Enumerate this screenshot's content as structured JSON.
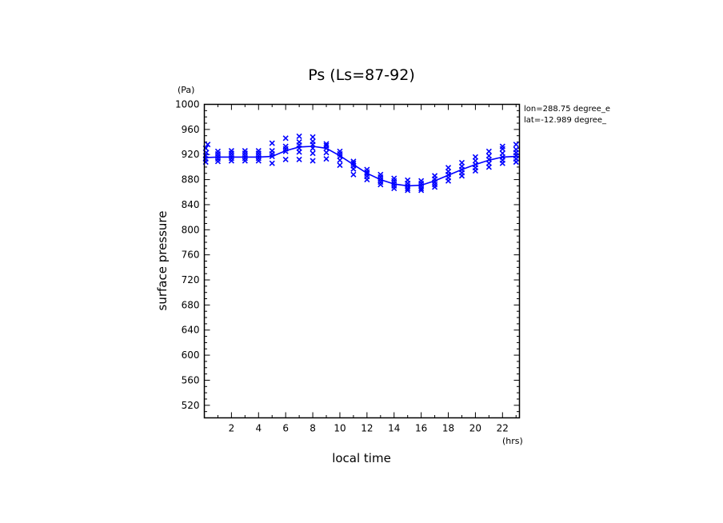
{
  "chart_data": {
    "type": "scatter",
    "title": "Ps (Ls=87-92)",
    "xlabel": "local time",
    "ylabel": "surface pressure",
    "xunit": "(hrs)",
    "yunit": "(Pa)",
    "annotations": [
      "lon=288.75 degree_e",
      "lat=-12.989 degree_"
    ],
    "xlim": [
      0,
      23.25
    ],
    "ylim": [
      500,
      1000
    ],
    "xticks": [
      2,
      4,
      6,
      8,
      10,
      12,
      14,
      16,
      18,
      20,
      22
    ],
    "yticks": [
      520,
      560,
      600,
      640,
      680,
      720,
      760,
      800,
      840,
      880,
      920,
      960,
      1000
    ],
    "grid": false,
    "series": [
      {
        "style": "line",
        "color": "#0000ff",
        "x": [
          0,
          1,
          2,
          3,
          4,
          5,
          6,
          7,
          8,
          9,
          10,
          11,
          12,
          13,
          14,
          15,
          16,
          17,
          18,
          19,
          20,
          21,
          22,
          23,
          23.25
        ],
        "y": [
          915,
          916,
          916,
          916,
          916,
          917,
          926,
          932,
          933,
          930,
          918,
          904,
          890,
          880,
          873,
          870,
          871,
          878,
          887,
          896,
          904,
          911,
          916,
          917,
          917
        ]
      },
      {
        "style": "markers",
        "marker": "x",
        "color": "#0000ff",
        "points": [
          [
            0.1,
            908
          ],
          [
            0.1,
            913
          ],
          [
            0.1,
            918
          ],
          [
            0.15,
            923
          ],
          [
            0.1,
            930
          ],
          [
            0.25,
            936
          ],
          [
            1,
            909
          ],
          [
            1,
            913
          ],
          [
            1,
            917
          ],
          [
            1,
            921
          ],
          [
            1,
            925
          ],
          [
            2,
            910
          ],
          [
            2,
            914
          ],
          [
            2,
            918
          ],
          [
            2,
            922
          ],
          [
            2,
            926
          ],
          [
            3,
            910
          ],
          [
            3,
            914
          ],
          [
            3,
            918
          ],
          [
            3,
            922
          ],
          [
            3,
            926
          ],
          [
            4,
            910
          ],
          [
            4,
            914
          ],
          [
            4,
            918
          ],
          [
            4,
            922
          ],
          [
            4,
            926
          ],
          [
            5,
            906
          ],
          [
            5,
            917
          ],
          [
            5,
            921
          ],
          [
            5,
            926
          ],
          [
            5,
            938
          ],
          [
            6,
            912
          ],
          [
            6,
            925
          ],
          [
            6,
            929
          ],
          [
            6,
            933
          ],
          [
            6,
            946
          ],
          [
            7,
            912
          ],
          [
            7,
            924
          ],
          [
            7,
            930
          ],
          [
            7,
            935
          ],
          [
            7,
            940
          ],
          [
            7,
            949
          ],
          [
            8,
            910
          ],
          [
            8,
            922
          ],
          [
            8,
            930
          ],
          [
            8,
            936
          ],
          [
            8,
            941
          ],
          [
            8,
            948
          ],
          [
            9,
            913
          ],
          [
            9,
            923
          ],
          [
            9,
            930
          ],
          [
            9,
            934
          ],
          [
            9,
            937
          ],
          [
            10,
            903
          ],
          [
            10,
            911
          ],
          [
            10,
            917
          ],
          [
            10,
            921
          ],
          [
            10,
            925
          ],
          [
            11,
            888
          ],
          [
            11,
            897
          ],
          [
            11,
            902
          ],
          [
            11,
            906
          ],
          [
            11,
            909
          ],
          [
            12,
            880
          ],
          [
            12,
            885
          ],
          [
            12,
            889
          ],
          [
            12,
            892
          ],
          [
            12,
            896
          ],
          [
            13,
            872
          ],
          [
            13,
            876
          ],
          [
            13,
            880
          ],
          [
            13,
            884
          ],
          [
            13,
            888
          ],
          [
            14,
            866
          ],
          [
            14,
            870
          ],
          [
            14,
            874
          ],
          [
            14,
            878
          ],
          [
            14,
            882
          ],
          [
            15,
            863
          ],
          [
            15,
            866
          ],
          [
            15,
            870
          ],
          [
            15,
            874
          ],
          [
            15,
            879
          ],
          [
            16,
            863
          ],
          [
            16,
            866
          ],
          [
            16,
            870
          ],
          [
            16,
            874
          ],
          [
            16,
            878
          ],
          [
            17,
            868
          ],
          [
            17,
            872
          ],
          [
            17,
            876
          ],
          [
            17,
            881
          ],
          [
            17,
            886
          ],
          [
            18,
            878
          ],
          [
            18,
            883
          ],
          [
            18,
            888
          ],
          [
            18,
            893
          ],
          [
            18,
            899
          ],
          [
            19,
            886
          ],
          [
            19,
            891
          ],
          [
            19,
            896
          ],
          [
            19,
            901
          ],
          [
            19,
            907
          ],
          [
            20,
            894
          ],
          [
            20,
            899
          ],
          [
            20,
            904
          ],
          [
            20,
            910
          ],
          [
            20,
            916
          ],
          [
            21,
            900
          ],
          [
            21,
            906
          ],
          [
            21,
            912
          ],
          [
            21,
            918
          ],
          [
            21,
            925
          ],
          [
            22,
            906
          ],
          [
            22,
            911
          ],
          [
            22,
            916
          ],
          [
            22,
            922
          ],
          [
            22,
            929
          ],
          [
            22,
            933
          ],
          [
            23,
            908
          ],
          [
            23,
            913
          ],
          [
            23,
            918
          ],
          [
            23,
            923
          ],
          [
            23,
            928
          ],
          [
            23,
            936
          ]
        ]
      }
    ]
  }
}
